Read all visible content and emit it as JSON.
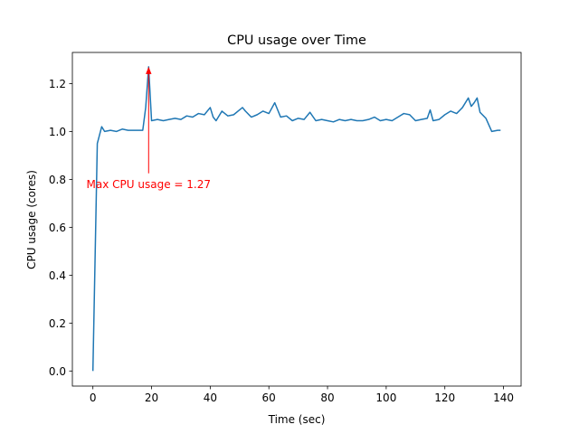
{
  "chart_data": {
    "type": "line",
    "title": "CPU usage over Time",
    "xlabel": "Time (sec)",
    "ylabel": "CPU usage (cores)",
    "xlim": [
      -7,
      146
    ],
    "ylim": [
      -0.063,
      1.33
    ],
    "x_ticks": [
      0,
      20,
      40,
      60,
      80,
      100,
      120,
      140
    ],
    "y_ticks": [
      0.0,
      0.2,
      0.4,
      0.6,
      0.8,
      1.0,
      1.2
    ],
    "y_tick_labels": [
      "0.0",
      "0.2",
      "0.4",
      "0.6",
      "0.8",
      "1.0",
      "1.2"
    ],
    "grid": false,
    "series_color": "#1f77b4",
    "series": [
      {
        "x": [
          0,
          1.5,
          3,
          4,
          6,
          8,
          10,
          12,
          14,
          16,
          17,
          18,
          19,
          20,
          22,
          24,
          26,
          28,
          30,
          32,
          34,
          36,
          38,
          40,
          41,
          42,
          44,
          46,
          48,
          50,
          51,
          52,
          54,
          56,
          58,
          60,
          62,
          64,
          66,
          68,
          70,
          72,
          74,
          76,
          78,
          80,
          82,
          84,
          86,
          88,
          90,
          92,
          94,
          96,
          98,
          100,
          102,
          104,
          106,
          108,
          110,
          112,
          114,
          115,
          116,
          118,
          120,
          122,
          124,
          126,
          128,
          129,
          130,
          131,
          132,
          134,
          136,
          138,
          139
        ],
        "values": [
          0.0,
          0.95,
          1.02,
          1.0,
          1.005,
          1.0,
          1.01,
          1.005,
          1.005,
          1.005,
          1.005,
          1.1,
          1.27,
          1.045,
          1.05,
          1.045,
          1.05,
          1.055,
          1.05,
          1.065,
          1.06,
          1.075,
          1.07,
          1.1,
          1.06,
          1.045,
          1.085,
          1.065,
          1.07,
          1.09,
          1.1,
          1.085,
          1.06,
          1.07,
          1.085,
          1.075,
          1.12,
          1.06,
          1.065,
          1.045,
          1.055,
          1.05,
          1.08,
          1.045,
          1.05,
          1.045,
          1.04,
          1.05,
          1.045,
          1.05,
          1.045,
          1.045,
          1.05,
          1.06,
          1.045,
          1.05,
          1.045,
          1.06,
          1.075,
          1.07,
          1.045,
          1.05,
          1.055,
          1.09,
          1.045,
          1.05,
          1.07,
          1.085,
          1.075,
          1.1,
          1.14,
          1.105,
          1.12,
          1.14,
          1.08,
          1.055,
          1.0,
          1.005,
          1.005
        ]
      }
    ],
    "annotation": {
      "text": "Max CPU usage = 1.27",
      "color": "#ff0000",
      "point": [
        19,
        1.27
      ],
      "text_pos": [
        19,
        0.78
      ]
    }
  }
}
